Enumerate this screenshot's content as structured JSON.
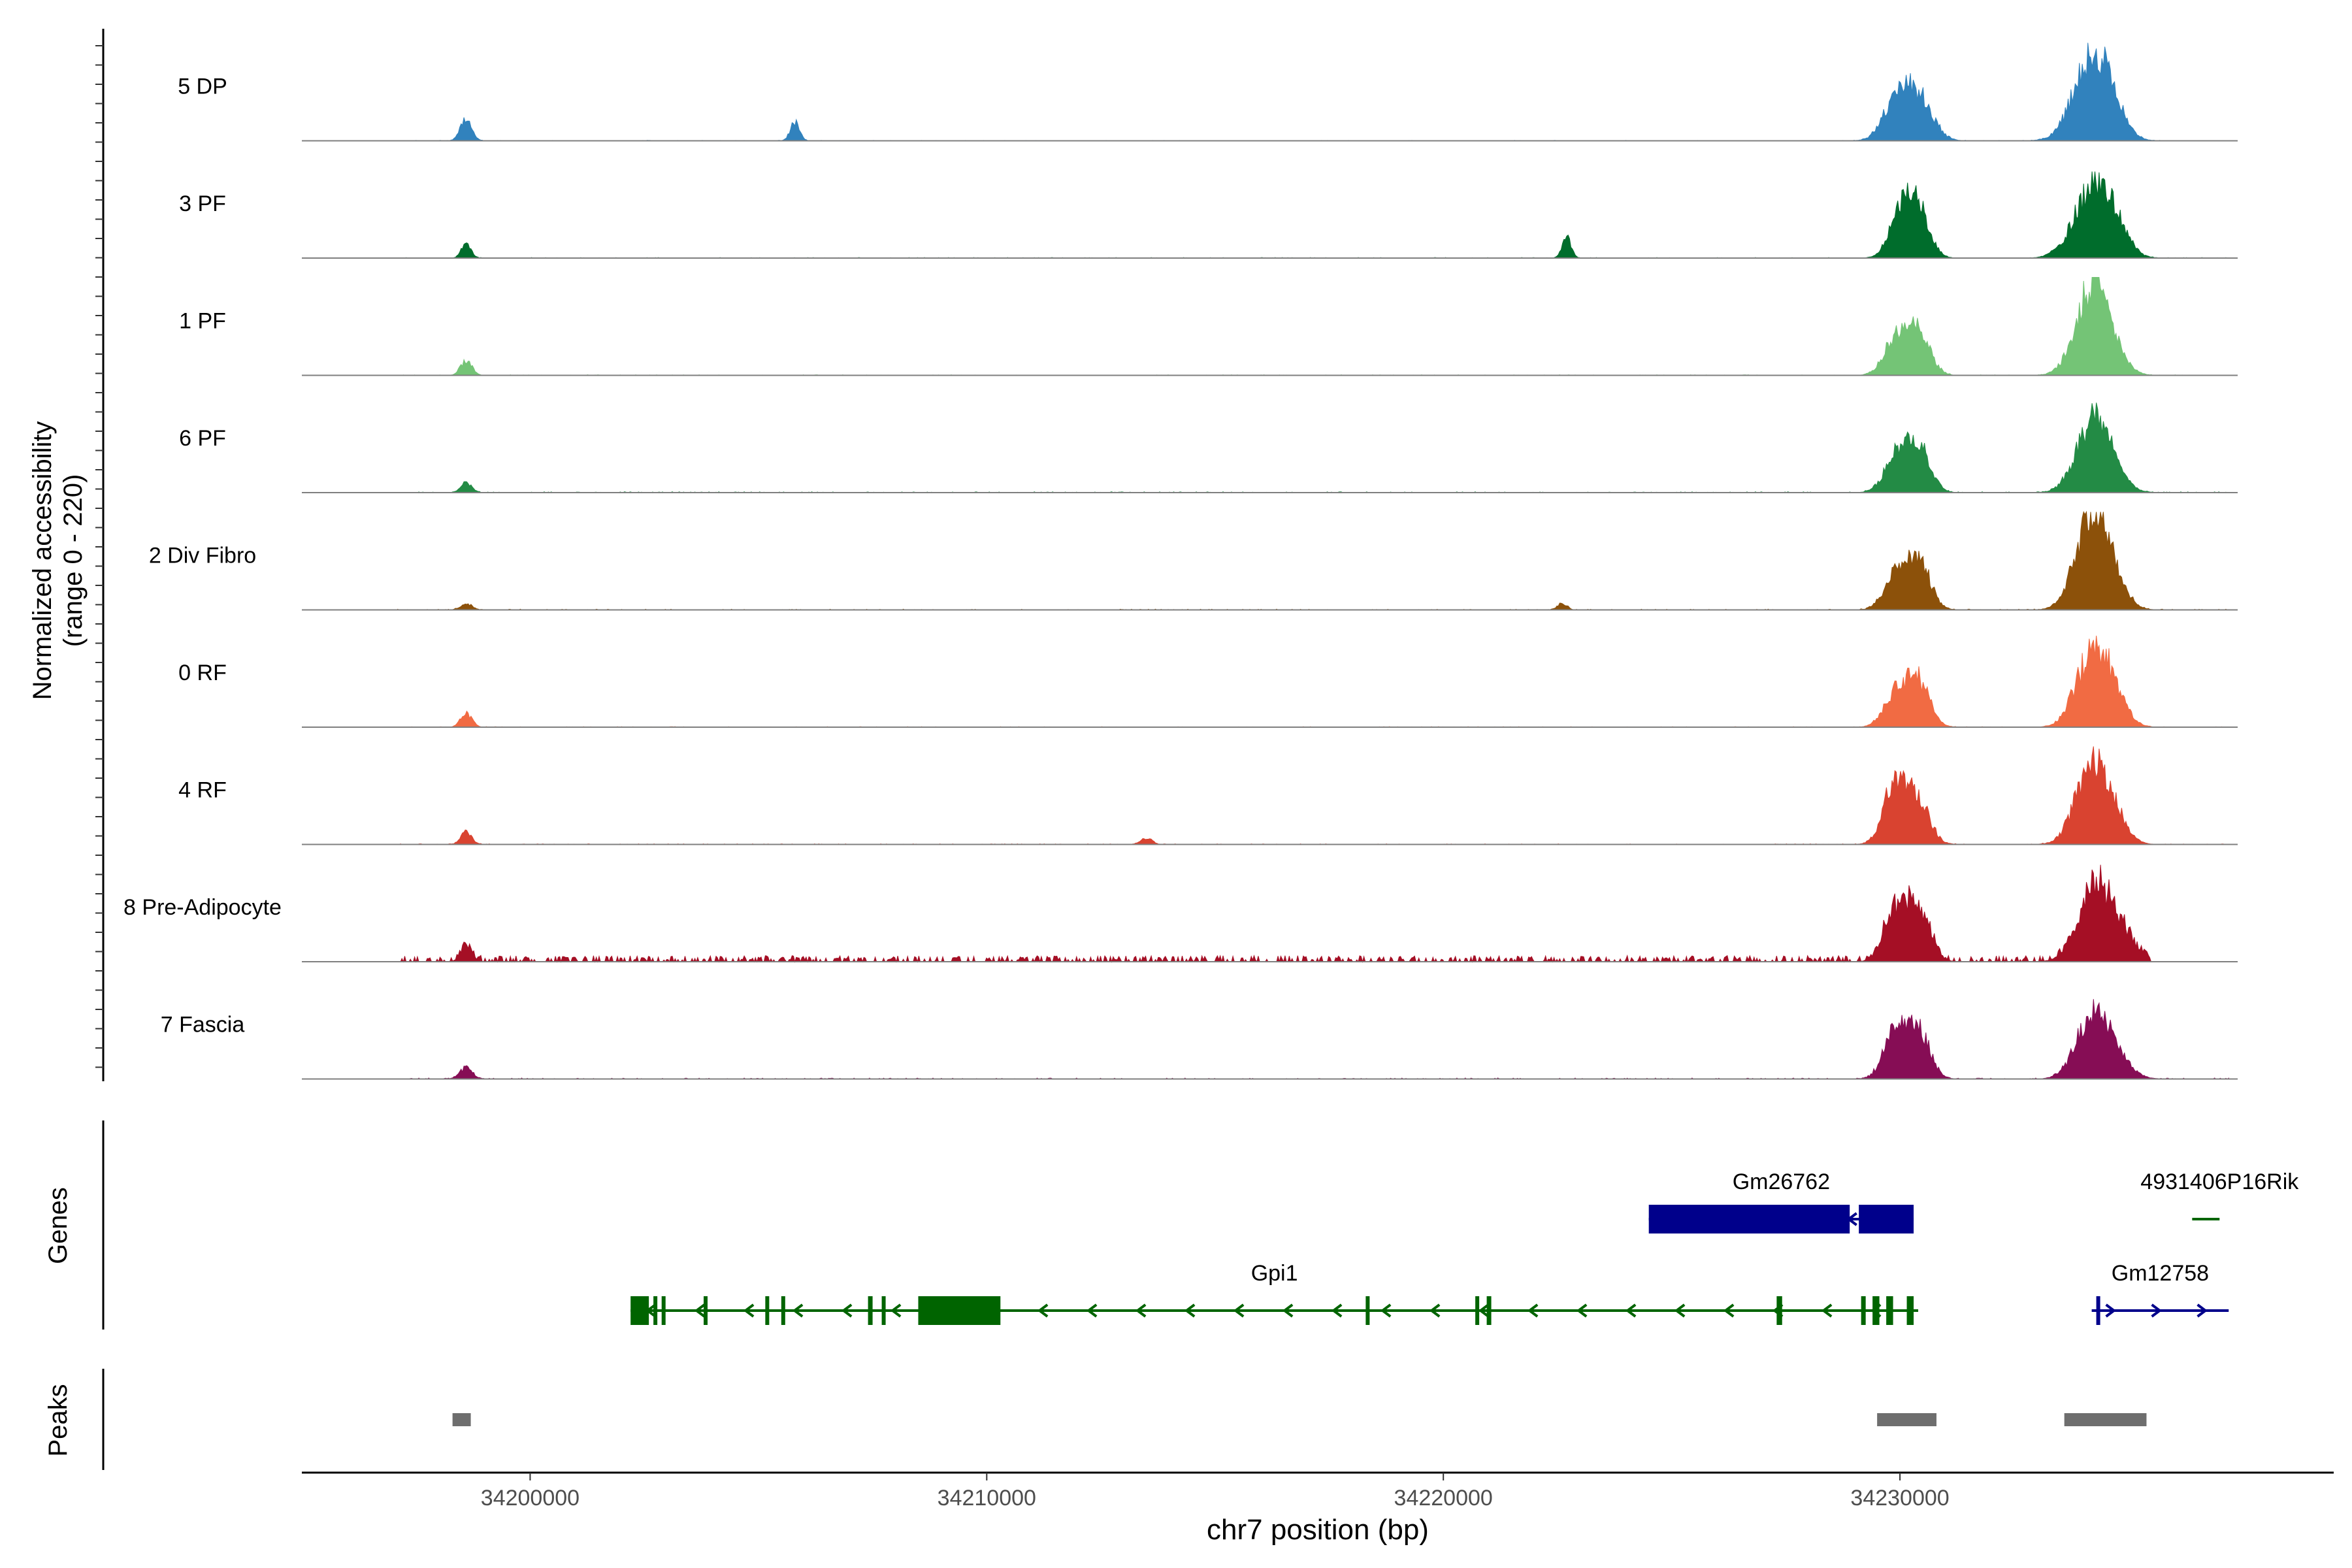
{
  "chart_data": {
    "type": "area",
    "title": "",
    "ylabel_line1": "Normalized accessibility",
    "ylabel_line2": "(range 0 - 220)",
    "yrange": [
      0,
      220
    ],
    "xlabel": "chr7 position (bp)",
    "xlim": [
      34195000,
      34239500
    ],
    "xticks": [
      34200000,
      34210000,
      34220000,
      34230000
    ],
    "xtick_labels": [
      "34200000",
      "34210000",
      "34220000",
      "34230000"
    ],
    "genes_label": "Genes",
    "peaks_label": "Peaks",
    "tracks": [
      {
        "name": "5 DP",
        "color": "#3182BD",
        "noise": 4,
        "trunc": false,
        "peaks": [
          [
            34198600,
            220,
            12
          ],
          [
            34205800,
            180,
            10
          ],
          [
            34229900,
            340,
            28
          ],
          [
            34230400,
            420,
            30
          ],
          [
            34234200,
            720,
            40
          ],
          [
            34234600,
            180,
            30
          ]
        ]
      },
      {
        "name": "3 PF",
        "color": "#006D2C",
        "noise": 5,
        "trunc": false,
        "peaks": [
          [
            34198600,
            140,
            10
          ],
          [
            34222700,
            180,
            10
          ],
          [
            34230000,
            420,
            24
          ],
          [
            34230400,
            460,
            24
          ],
          [
            34234200,
            600,
            40
          ],
          [
            34234700,
            220,
            30
          ]
        ]
      },
      {
        "name": "1 PF",
        "color": "#74C476",
        "noise": 5,
        "trunc": false,
        "peaks": [
          [
            34198600,
            140,
            12
          ],
          [
            34229900,
            320,
            25
          ],
          [
            34230400,
            420,
            25
          ],
          [
            34234200,
            780,
            35
          ],
          [
            34234650,
            160,
            30
          ]
        ]
      },
      {
        "name": "6 PF",
        "color": "#238B45",
        "noise": 8,
        "trunc": false,
        "peaks": [
          [
            34198600,
            90,
            12
          ],
          [
            34229900,
            320,
            25
          ],
          [
            34230400,
            460,
            25
          ],
          [
            34234200,
            620,
            35
          ],
          [
            34234650,
            160,
            30
          ]
        ]
      },
      {
        "name": "2 Div Fibro",
        "color": "#8C510A",
        "noise": 7,
        "trunc": false,
        "peaks": [
          [
            34198600,
            60,
            12
          ],
          [
            34222600,
            60,
            10
          ],
          [
            34229900,
            320,
            25
          ],
          [
            34230400,
            460,
            25
          ],
          [
            34234200,
            840,
            35
          ],
          [
            34234650,
            200,
            30
          ]
        ]
      },
      {
        "name": "0 RF",
        "color": "#F16B43",
        "noise": 5,
        "trunc": false,
        "peaks": [
          [
            34198600,
            130,
            12
          ],
          [
            34229900,
            300,
            25
          ],
          [
            34230400,
            420,
            25
          ],
          [
            34234200,
            640,
            35
          ],
          [
            34234650,
            240,
            30
          ]
        ]
      },
      {
        "name": "4 RF",
        "color": "#D94330",
        "noise": 6,
        "trunc": false,
        "peaks": [
          [
            34198600,
            120,
            12
          ],
          [
            34213500,
            60,
            12
          ],
          [
            34229900,
            560,
            25
          ],
          [
            34230400,
            400,
            25
          ],
          [
            34234200,
            700,
            35
          ],
          [
            34234650,
            200,
            30
          ]
        ]
      },
      {
        "name": "8 Pre-Adipocyte",
        "color": "#A50F25",
        "noise": 40,
        "trunc": true,
        "peaks": [
          [
            34198600,
            160,
            12
          ],
          [
            34229900,
            450,
            25
          ],
          [
            34230400,
            480,
            25
          ],
          [
            34234200,
            500,
            35
          ],
          [
            34234650,
            350,
            40
          ]
        ]
      },
      {
        "name": "7 Fascia",
        "color": "#860D55",
        "noise": 9,
        "trunc": false,
        "peaks": [
          [
            34198600,
            100,
            14
          ],
          [
            34229900,
            420,
            25
          ],
          [
            34230400,
            440,
            25
          ],
          [
            34234200,
            520,
            35
          ],
          [
            34234650,
            200,
            35
          ]
        ]
      }
    ],
    "genes": [
      {
        "name": "Gm26762",
        "start": 34224500,
        "end": 34230300,
        "strand": "-",
        "row": 1,
        "color": "#00008B",
        "exons": [
          [
            34224500,
            34228900
          ],
          [
            34229100,
            34230300
          ]
        ]
      },
      {
        "name": "4931406P16Rik",
        "start": 34236400,
        "end": 34237000,
        "strand": "-",
        "row": 1,
        "color": "#006400",
        "exons": []
      },
      {
        "name": "Gpi1",
        "start": 34202200,
        "end": 34230400,
        "strand": "-",
        "row": 2,
        "color": "#006400",
        "exons": [
          [
            34202200,
            34202600
          ],
          [
            34202700,
            34202780
          ],
          [
            34202880,
            34202950
          ],
          [
            34203800,
            34203870
          ],
          [
            34205150,
            34205210
          ],
          [
            34205500,
            34205580
          ],
          [
            34207400,
            34207500
          ],
          [
            34207700,
            34207780
          ],
          [
            34208500,
            34210300
          ],
          [
            34218300,
            34218360
          ],
          [
            34220700,
            34220780
          ],
          [
            34220950,
            34221050
          ],
          [
            34227300,
            34227420
          ],
          [
            34229150,
            34229250
          ],
          [
            34229400,
            34229550
          ],
          [
            34229700,
            34229850
          ],
          [
            34230150,
            34230300
          ]
        ]
      },
      {
        "name": "Gm12758",
        "start": 34234200,
        "end": 34237200,
        "strand": "+",
        "row": 2,
        "color": "#00008B",
        "exons": [
          [
            34234300,
            34234380
          ]
        ]
      }
    ],
    "peaks": [
      [
        34198300,
        34198700
      ],
      [
        34229500,
        34230800
      ],
      [
        34233600,
        34235400
      ]
    ]
  }
}
